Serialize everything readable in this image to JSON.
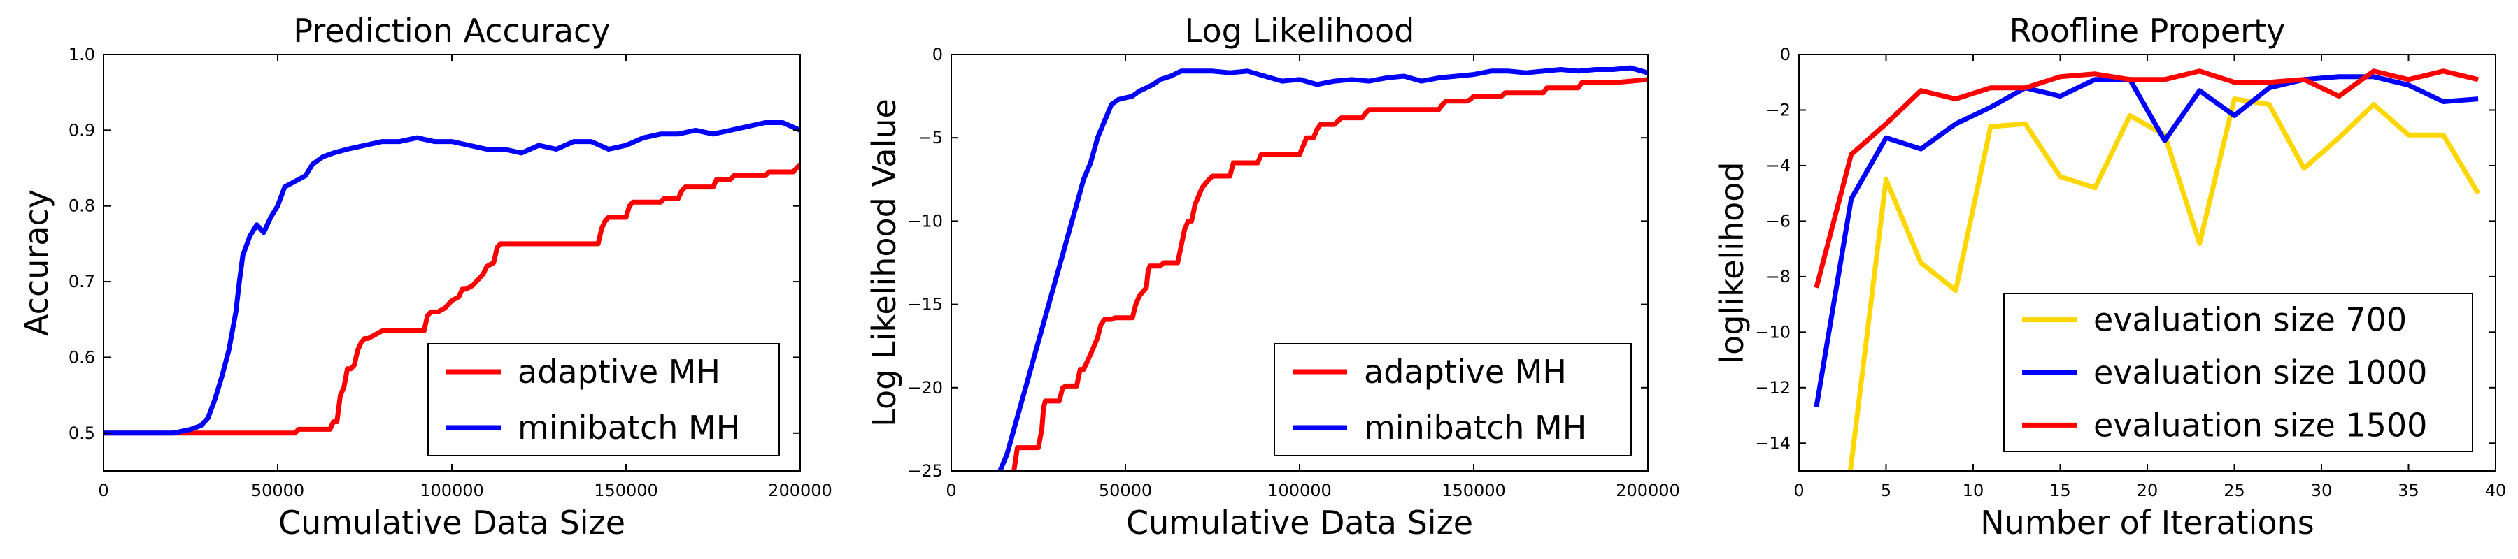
{
  "chart_data": [
    {
      "type": "line",
      "title": "Prediction Accuracy",
      "xlabel": "Cumulative Data Size",
      "ylabel": "Accuracy",
      "xlim": [
        0,
        200000
      ],
      "ylim": [
        0.45,
        1.0
      ],
      "xticks": [
        0,
        50000,
        100000,
        150000,
        200000
      ],
      "yticks": [
        0.5,
        0.6,
        0.7,
        0.8,
        0.9,
        1.0
      ],
      "xtick_labels": [
        "0",
        "50000",
        "100000",
        "150000",
        "200000"
      ],
      "ytick_labels": [
        "0.5",
        "0.6",
        "0.7",
        "0.8",
        "0.9",
        "1.0"
      ],
      "legend_position": "bottom-right",
      "series": [
        {
          "name": "adaptive MH",
          "color": "#ff0000",
          "x": [
            0,
            20000,
            40000,
            55000,
            56000,
            65000,
            66000,
            67000,
            68000,
            69000,
            70000,
            71000,
            72000,
            73000,
            74000,
            75000,
            76000,
            78000,
            80000,
            81000,
            82000,
            83000,
            90000,
            92000,
            93000,
            94000,
            96000,
            98000,
            100000,
            102000,
            103000,
            104000,
            106000,
            108000,
            109000,
            110000,
            112000,
            113000,
            114000,
            130000,
            132000,
            133000,
            134000,
            142000,
            143000,
            144000,
            145000,
            148000,
            150000,
            151000,
            152000,
            160000,
            161000,
            162000,
            165000,
            166000,
            167000,
            175000,
            176000,
            180000,
            181000,
            190000,
            191000,
            198000,
            199000,
            200000
          ],
          "y": [
            0.5,
            0.5,
            0.5,
            0.5,
            0.505,
            0.505,
            0.515,
            0.515,
            0.55,
            0.56,
            0.585,
            0.585,
            0.59,
            0.61,
            0.62,
            0.625,
            0.625,
            0.63,
            0.635,
            0.635,
            0.635,
            0.635,
            0.635,
            0.635,
            0.655,
            0.66,
            0.66,
            0.665,
            0.675,
            0.68,
            0.69,
            0.69,
            0.695,
            0.705,
            0.71,
            0.72,
            0.725,
            0.745,
            0.75,
            0.75,
            0.75,
            0.75,
            0.75,
            0.75,
            0.77,
            0.78,
            0.785,
            0.785,
            0.785,
            0.8,
            0.805,
            0.805,
            0.81,
            0.81,
            0.81,
            0.82,
            0.825,
            0.825,
            0.835,
            0.835,
            0.84,
            0.84,
            0.845,
            0.845,
            0.85,
            0.855
          ]
        },
        {
          "name": "minibatch MH",
          "color": "#0000ff",
          "x": [
            0,
            20000,
            25000,
            28000,
            30000,
            32000,
            34000,
            36000,
            38000,
            39000,
            40000,
            42000,
            44000,
            46000,
            48000,
            50000,
            52000,
            54000,
            56000,
            58000,
            60000,
            63000,
            66000,
            70000,
            75000,
            80000,
            85000,
            90000,
            95000,
            100000,
            105000,
            110000,
            115000,
            120000,
            125000,
            130000,
            135000,
            140000,
            145000,
            150000,
            155000,
            160000,
            165000,
            170000,
            175000,
            180000,
            185000,
            190000,
            195000,
            200000
          ],
          "y": [
            0.5,
            0.5,
            0.505,
            0.51,
            0.52,
            0.545,
            0.575,
            0.61,
            0.66,
            0.7,
            0.735,
            0.76,
            0.775,
            0.765,
            0.785,
            0.8,
            0.825,
            0.83,
            0.835,
            0.84,
            0.855,
            0.865,
            0.87,
            0.875,
            0.88,
            0.885,
            0.885,
            0.89,
            0.885,
            0.885,
            0.88,
            0.875,
            0.875,
            0.87,
            0.88,
            0.875,
            0.885,
            0.885,
            0.875,
            0.88,
            0.89,
            0.895,
            0.895,
            0.9,
            0.895,
            0.9,
            0.905,
            0.91,
            0.91,
            0.9
          ]
        }
      ]
    },
    {
      "type": "line",
      "title": "Log Likelihood",
      "xlabel": "Cumulative Data Size",
      "ylabel": "Log Likelihood Value",
      "xlim": [
        0,
        200000
      ],
      "ylim": [
        -25,
        0
      ],
      "xticks": [
        0,
        50000,
        100000,
        150000,
        200000
      ],
      "yticks": [
        -25,
        -20,
        -15,
        -10,
        -5,
        0
      ],
      "xtick_labels": [
        "0",
        "50000",
        "100000",
        "150000",
        "200000"
      ],
      "ytick_labels": [
        "−25",
        "−20",
        "−15",
        "−10",
        "−5",
        "0"
      ],
      "legend_position": "bottom-right",
      "series": [
        {
          "name": "adaptive MH",
          "color": "#ff0000",
          "x": [
            18000,
            19000,
            20000,
            25000,
            26000,
            26500,
            27000,
            31000,
            32000,
            33000,
            36000,
            37000,
            38000,
            40000,
            42000,
            43000,
            44000,
            46000,
            47000,
            48000,
            49000,
            52000,
            53000,
            54000,
            56000,
            56500,
            57000,
            60000,
            61000,
            62000,
            65000,
            66000,
            67000,
            68000,
            69000,
            70000,
            71000,
            72000,
            74000,
            75000,
            76000,
            78000,
            80000,
            81000,
            88000,
            89000,
            90000,
            92000,
            93000,
            94000,
            96000,
            98000,
            100000,
            101000,
            102000,
            104000,
            105000,
            106000,
            110000,
            111000,
            112000,
            118000,
            119000,
            120000,
            125000,
            126000,
            130000,
            131000,
            132000,
            134000,
            140000,
            141000,
            142000,
            148000,
            149000,
            150000,
            158000,
            159000,
            170000,
            171000,
            180000,
            181000,
            190000,
            200000
          ],
          "y": [
            -25,
            -23.6,
            -23.6,
            -23.6,
            -22.5,
            -21.2,
            -20.8,
            -20.8,
            -20.0,
            -19.9,
            -19.9,
            -18.9,
            -18.9,
            -18.0,
            -17.0,
            -16.2,
            -15.9,
            -15.9,
            -15.8,
            -15.8,
            -15.8,
            -15.8,
            -15.0,
            -14.5,
            -14.0,
            -13.0,
            -12.7,
            -12.7,
            -12.5,
            -12.5,
            -12.5,
            -11.5,
            -10.5,
            -10.0,
            -10.0,
            -9.0,
            -8.5,
            -8.0,
            -7.5,
            -7.3,
            -7.3,
            -7.3,
            -7.3,
            -6.5,
            -6.5,
            -6.0,
            -6.0,
            -6.0,
            -6.0,
            -6.0,
            -6.0,
            -6.0,
            -6.0,
            -5.5,
            -5.0,
            -5.0,
            -4.5,
            -4.2,
            -4.2,
            -4.0,
            -3.8,
            -3.8,
            -3.5,
            -3.3,
            -3.3,
            -3.3,
            -3.3,
            -3.3,
            -3.3,
            -3.3,
            -3.3,
            -3.0,
            -2.8,
            -2.8,
            -2.7,
            -2.5,
            -2.5,
            -2.3,
            -2.3,
            -2.0,
            -2.0,
            -1.7,
            -1.7,
            -1.5
          ]
        },
        {
          "name": "minibatch MH",
          "color": "#0000ff",
          "x": [
            14000,
            16000,
            18000,
            20000,
            22000,
            24000,
            26000,
            28000,
            30000,
            32000,
            34000,
            36000,
            38000,
            40000,
            42000,
            44000,
            46000,
            48000,
            50000,
            52000,
            54000,
            56000,
            58000,
            60000,
            63000,
            66000,
            70000,
            75000,
            80000,
            85000,
            90000,
            95000,
            100000,
            105000,
            110000,
            115000,
            120000,
            125000,
            130000,
            135000,
            140000,
            145000,
            150000,
            155000,
            160000,
            165000,
            170000,
            175000,
            180000,
            185000,
            190000,
            195000,
            200000
          ],
          "y": [
            -25,
            -24.0,
            -22.5,
            -21.0,
            -19.5,
            -18.0,
            -16.5,
            -15.0,
            -13.5,
            -12.0,
            -10.5,
            -9.0,
            -7.5,
            -6.5,
            -5.0,
            -4.0,
            -3.0,
            -2.7,
            -2.6,
            -2.5,
            -2.2,
            -2.0,
            -1.8,
            -1.5,
            -1.3,
            -1.0,
            -1.0,
            -1.0,
            -1.1,
            -1.0,
            -1.3,
            -1.6,
            -1.5,
            -1.8,
            -1.6,
            -1.5,
            -1.6,
            -1.4,
            -1.3,
            -1.6,
            -1.4,
            -1.3,
            -1.2,
            -1.0,
            -1.0,
            -1.1,
            -1.0,
            -0.9,
            -1.0,
            -0.9,
            -0.9,
            -0.8,
            -1.1
          ]
        }
      ]
    },
    {
      "type": "line",
      "title": "Roofline Property",
      "xlabel": "Number of Iterations",
      "ylabel": "loglikelihood",
      "xlim": [
        0,
        40
      ],
      "ylim": [
        -15,
        0
      ],
      "xticks": [
        0,
        5,
        10,
        15,
        20,
        25,
        30,
        35,
        40
      ],
      "yticks": [
        -14,
        -12,
        -10,
        -8,
        -6,
        -4,
        -2,
        0
      ],
      "xtick_labels": [
        "0",
        "5",
        "10",
        "15",
        "20",
        "25",
        "30",
        "35",
        "40"
      ],
      "ytick_labels": [
        "−14",
        "−12",
        "−10",
        "−8",
        "−6",
        "−4",
        "−2",
        "0"
      ],
      "legend_position": "bottom-right",
      "series": [
        {
          "name": "evaluation size 700",
          "color": "#ffd700",
          "x": [
            2.95,
            5,
            7,
            9,
            11,
            13,
            15,
            17,
            19,
            21,
            23,
            25,
            27,
            29,
            31,
            33,
            35,
            37,
            39
          ],
          "y": [
            -15,
            -4.5,
            -7.5,
            -8.5,
            -2.6,
            -2.5,
            -4.4,
            -4.8,
            -2.2,
            -2.9,
            -6.8,
            -1.6,
            -1.8,
            -4.1,
            -3.0,
            -1.8,
            -2.9,
            -2.9,
            -5.0
          ]
        },
        {
          "name": "evaluation size 1000",
          "color": "#0000ff",
          "x": [
            1,
            3,
            5,
            7,
            9,
            11,
            13,
            15,
            17,
            19,
            21,
            23,
            25,
            27,
            29,
            31,
            33,
            35,
            37,
            39
          ],
          "y": [
            -12.7,
            -5.2,
            -3.0,
            -3.4,
            -2.5,
            -1.9,
            -1.2,
            -1.5,
            -0.9,
            -0.9,
            -3.1,
            -1.3,
            -2.2,
            -1.2,
            -0.9,
            -0.8,
            -0.8,
            -1.1,
            -1.7,
            -1.6
          ]
        },
        {
          "name": "evaluation size 1500",
          "color": "#ff0000",
          "x": [
            1,
            3,
            5,
            7,
            9,
            11,
            13,
            15,
            17,
            19,
            21,
            23,
            25,
            27,
            29,
            31,
            33,
            35,
            37,
            39
          ],
          "y": [
            -8.4,
            -3.6,
            -2.5,
            -1.3,
            -1.6,
            -1.2,
            -1.2,
            -0.8,
            -0.7,
            -0.9,
            -0.9,
            -0.6,
            -1.0,
            -1.0,
            -0.9,
            -1.5,
            -0.6,
            -0.9,
            -0.6,
            -0.9
          ]
        }
      ]
    }
  ]
}
